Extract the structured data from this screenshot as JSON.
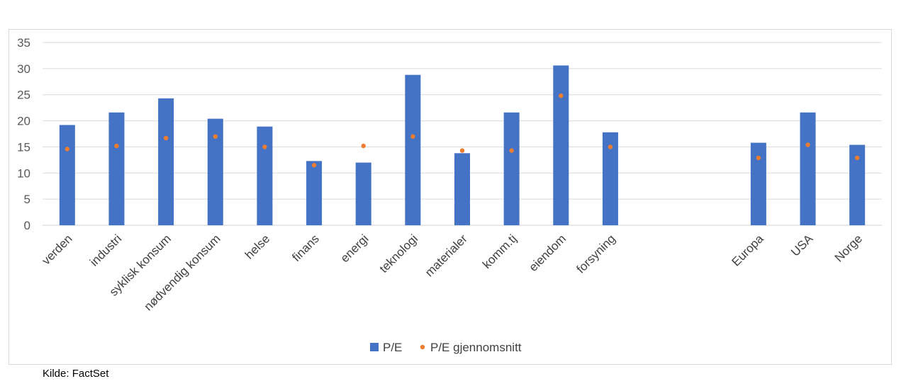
{
  "chart_data": {
    "type": "bar",
    "categories": [
      "verden",
      "industri",
      "syklisk konsum",
      "nødvendig konsum",
      "helse",
      "finans",
      "energi",
      "teknologi",
      "materialer",
      "komm.tj",
      "eiendom",
      "forsyning",
      "",
      "",
      "Europa",
      "USA",
      "Norge"
    ],
    "series": [
      {
        "name": "P/E",
        "kind": "bar",
        "color": "#4472C4",
        "values": [
          19.2,
          21.6,
          24.3,
          20.4,
          18.9,
          12.3,
          12.0,
          28.8,
          13.8,
          21.6,
          30.6,
          17.8,
          null,
          null,
          15.8,
          21.6,
          15.4
        ]
      },
      {
        "name": "P/E gjennomsnitt",
        "kind": "dot",
        "color": "#ED7D31",
        "values": [
          14.6,
          15.2,
          16.7,
          17.0,
          15.0,
          11.5,
          15.2,
          17.0,
          14.3,
          14.3,
          24.8,
          15.0,
          null,
          null,
          12.9,
          15.4,
          12.9
        ]
      }
    ],
    "ylim": [
      0,
      35
    ],
    "yticks": [
      0,
      5,
      10,
      15,
      20,
      25,
      30,
      35
    ],
    "grid": true,
    "legend_position": "bottom"
  },
  "source": "Kilde: FactSet"
}
